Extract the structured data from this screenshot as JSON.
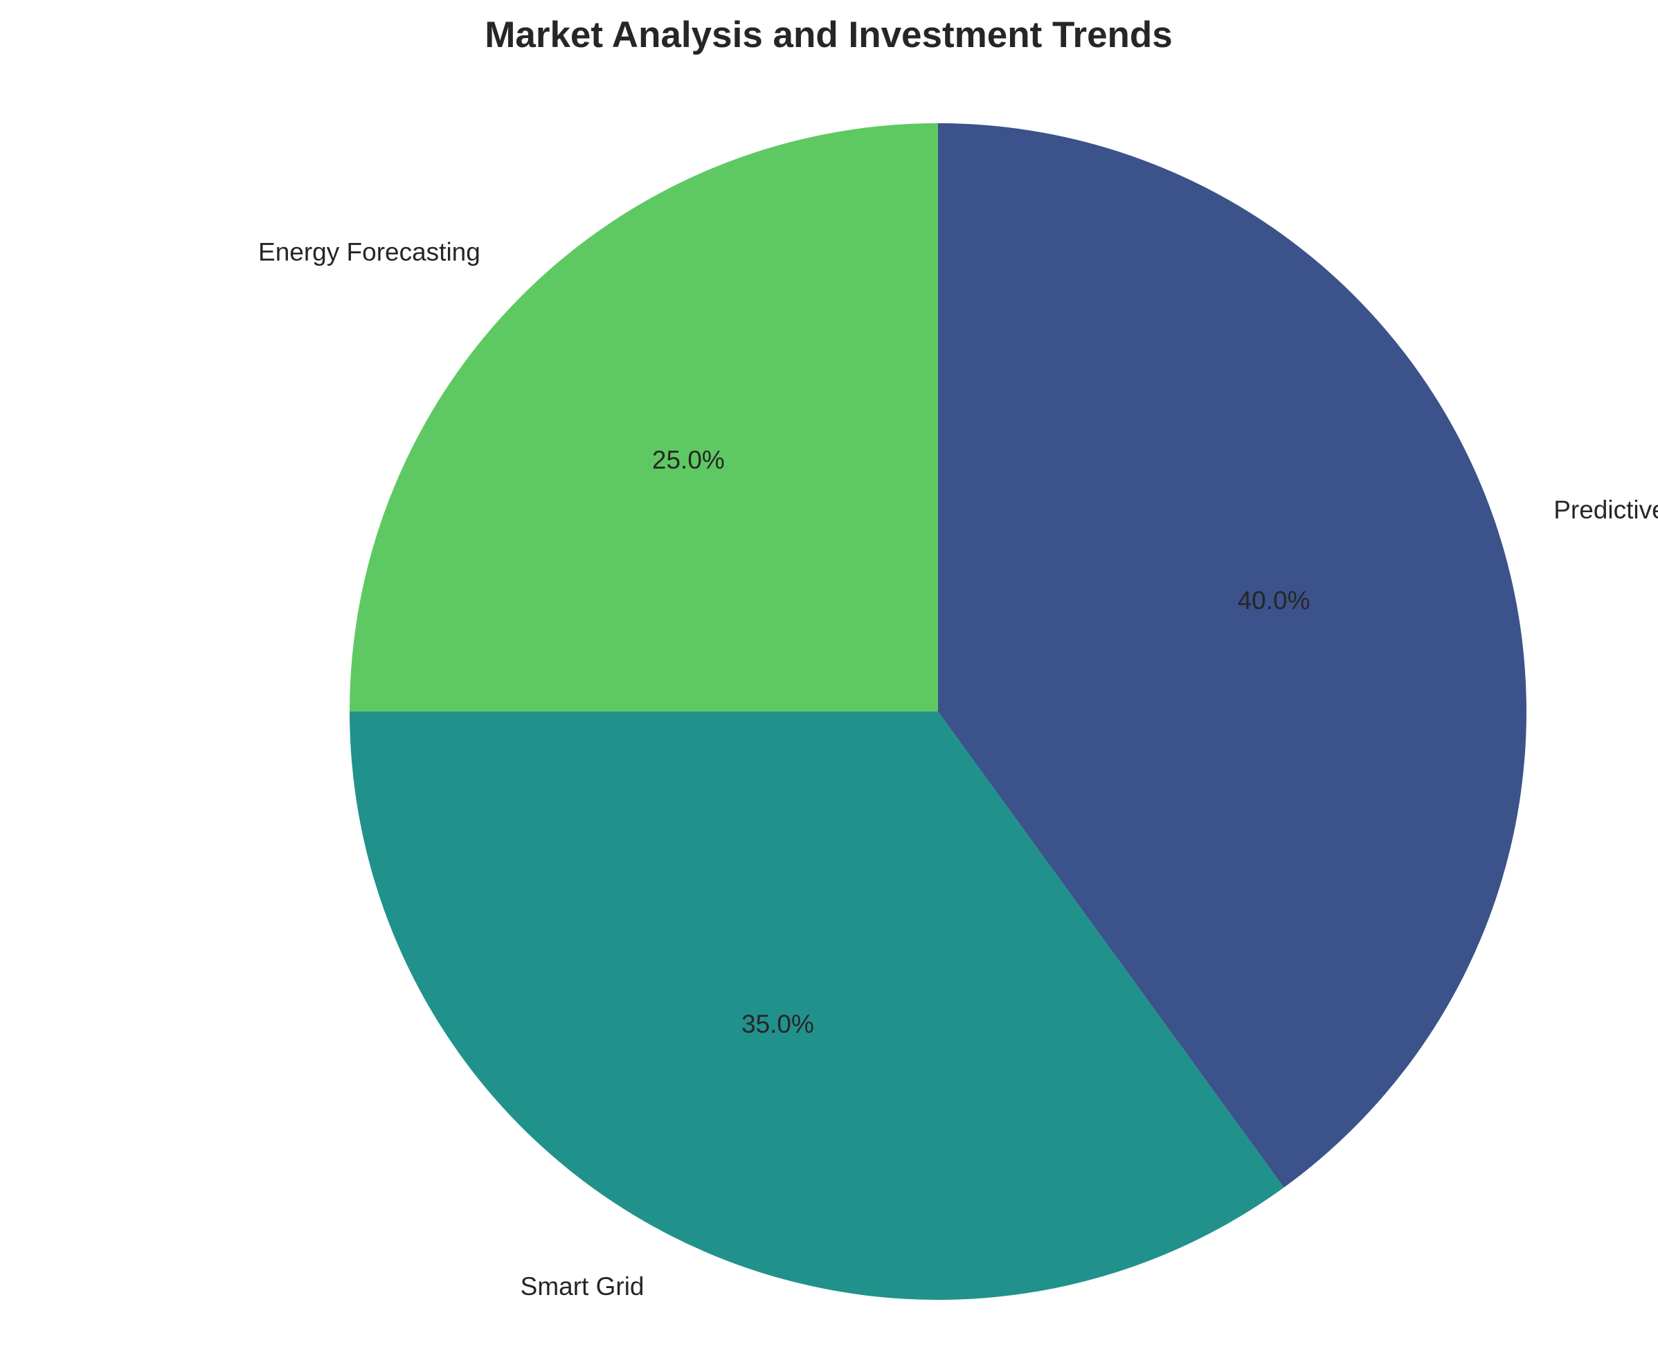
{
  "chart_data": {
    "type": "pie",
    "title": "Market Analysis and Investment Trends",
    "categories": [
      "Energy Forecasting",
      "Smart Grid",
      "Predictive Maintenance"
    ],
    "values": [
      25,
      35,
      40
    ],
    "percent_labels": [
      "25.0%",
      "35.0%",
      "40.0%"
    ],
    "colors": [
      "#5ec962",
      "#21918c",
      "#3b528b"
    ],
    "start_angle_deg": 90,
    "direction": "counterclockwise",
    "legend": "none"
  }
}
